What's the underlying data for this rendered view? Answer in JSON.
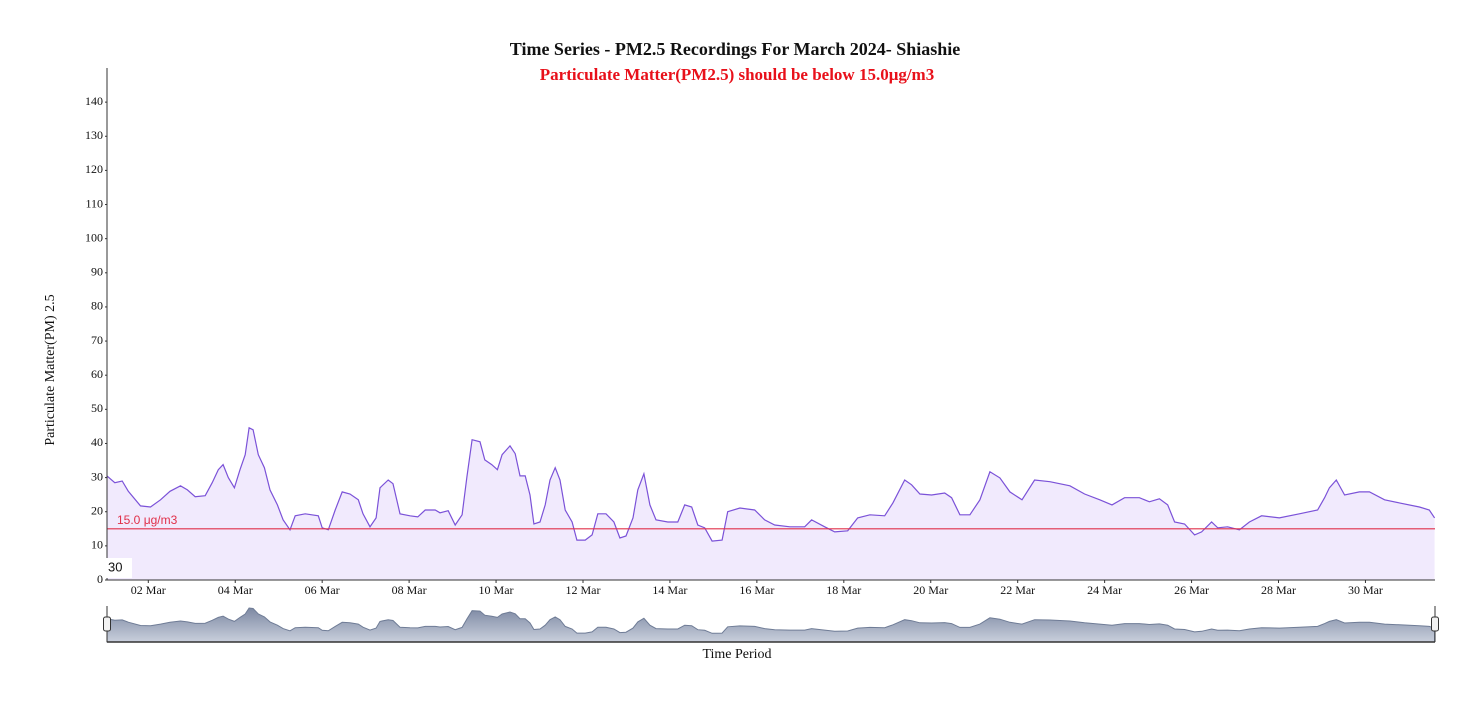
{
  "chart_data": {
    "type": "area",
    "title": "Time Series - PM2.5 Recordings For March 2024- Shiashie",
    "subtitle": "Particulate Matter(PM2.5) should be below 15.0μg/m3",
    "y_label": "Particulate Matter(PM) 2.5",
    "x_label": "Time Period",
    "annotation": "30",
    "threshold": {
      "value": 15,
      "label": "15.0 μg/m3"
    },
    "threshold_color": "#e0304a",
    "xlim": [
      1.05,
      31.6
    ],
    "ylim": [
      0,
      150
    ],
    "yticks": [
      0,
      10,
      20,
      30,
      40,
      50,
      60,
      70,
      80,
      90,
      100,
      110,
      120,
      130,
      140
    ],
    "xticks": [
      {
        "value": 2,
        "label": "02 Mar"
      },
      {
        "value": 4,
        "label": "04 Mar"
      },
      {
        "value": 6,
        "label": "06 Mar"
      },
      {
        "value": 8,
        "label": "08 Mar"
      },
      {
        "value": 10,
        "label": "10 Mar"
      },
      {
        "value": 12,
        "label": "12 Mar"
      },
      {
        "value": 14,
        "label": "14 Mar"
      },
      {
        "value": 16,
        "label": "16 Mar"
      },
      {
        "value": 18,
        "label": "18 Mar"
      },
      {
        "value": 20,
        "label": "20 Mar"
      },
      {
        "value": 22,
        "label": "22 Mar"
      },
      {
        "value": 24,
        "label": "24 Mar"
      },
      {
        "value": 26,
        "label": "26 Mar"
      },
      {
        "value": 28,
        "label": "28 Mar"
      },
      {
        "value": 30,
        "label": "30 Mar"
      }
    ],
    "navigator": true,
    "series": [
      {
        "color": "#7b52d8",
        "fill": "#f1eafd",
        "x": [
          1.05,
          1.23,
          1.4,
          1.54,
          1.82,
          2.05,
          2.28,
          2.5,
          2.74,
          2.9,
          3.08,
          3.31,
          3.47,
          3.61,
          3.72,
          3.84,
          3.98,
          4.11,
          4.23,
          4.32,
          4.41,
          4.53,
          4.67,
          4.8,
          4.97,
          5.1,
          5.26,
          5.38,
          5.61,
          5.91,
          6.0,
          6.14,
          6.3,
          6.46,
          6.64,
          6.83,
          6.94,
          7.1,
          7.24,
          7.33,
          7.52,
          7.63,
          7.79,
          8.02,
          8.2,
          8.37,
          8.6,
          8.71,
          8.9,
          9.06,
          9.22,
          9.33,
          9.45,
          9.63,
          9.74,
          9.9,
          10.03,
          10.14,
          10.32,
          10.44,
          10.55,
          10.67,
          10.78,
          10.87,
          11.01,
          11.13,
          11.24,
          11.36,
          11.47,
          11.59,
          11.75,
          11.86,
          12.05,
          12.21,
          12.34,
          12.53,
          12.71,
          12.85,
          12.99,
          13.15,
          13.26,
          13.4,
          13.54,
          13.68,
          13.95,
          14.18,
          14.34,
          14.5,
          14.64,
          14.8,
          14.97,
          15.2,
          15.33,
          15.61,
          15.95,
          16.18,
          16.41,
          16.76,
          17.1,
          17.26,
          17.56,
          17.79,
          18.09,
          18.32,
          18.6,
          18.94,
          19.13,
          19.4,
          19.56,
          19.75,
          20.02,
          20.32,
          20.48,
          20.67,
          20.9,
          21.13,
          21.36,
          21.59,
          21.82,
          22.1,
          22.39,
          22.74,
          23.2,
          23.54,
          23.89,
          24.17,
          24.46,
          24.8,
          25.03,
          25.26,
          25.45,
          25.61,
          25.84,
          26.07,
          26.23,
          26.46,
          26.6,
          26.83,
          27.1,
          27.33,
          27.61,
          28.02,
          28.48,
          28.9,
          29.06,
          29.17,
          29.33,
          29.52,
          29.86,
          30.09,
          30.44,
          30.78,
          31.24,
          31.47,
          31.59
        ],
        "values": [
          30.5,
          28.5,
          29,
          26,
          21.7,
          21.4,
          23.5,
          26,
          27.6,
          26.4,
          24.4,
          24.7,
          28.5,
          32.3,
          33.8,
          30,
          27,
          32.3,
          36.7,
          44.6,
          44,
          36.7,
          32.9,
          26.4,
          22,
          17.6,
          14.7,
          18.8,
          19.4,
          18.8,
          15.3,
          14.7,
          20.5,
          25.8,
          25.2,
          23.5,
          19.4,
          15.6,
          18.2,
          27,
          29.3,
          28.2,
          19.4,
          18.8,
          18.5,
          20.5,
          20.5,
          19.7,
          20.3,
          16.1,
          19.1,
          30.2,
          41.1,
          40.5,
          35.2,
          33.8,
          32.3,
          36.7,
          39.3,
          37,
          30.5,
          30.5,
          24.9,
          16.4,
          17,
          22,
          29.3,
          32.9,
          29.3,
          20.5,
          17,
          11.7,
          11.7,
          13.2,
          19.4,
          19.4,
          17,
          12.3,
          12.9,
          18.2,
          26.4,
          31.1,
          22,
          17.6,
          17,
          17,
          22,
          21.4,
          16.1,
          15.3,
          11.4,
          11.7,
          20,
          21.1,
          20.5,
          17.6,
          16.1,
          15.6,
          15.6,
          17.6,
          15.6,
          14.1,
          14.4,
          18.2,
          19.1,
          18.8,
          22.6,
          29.3,
          27.9,
          25.2,
          24.9,
          25.5,
          24.1,
          19.1,
          19.1,
          23.5,
          31.7,
          29.9,
          25.8,
          23.5,
          29.3,
          28.8,
          27.6,
          25.2,
          23.5,
          22,
          24.1,
          24.1,
          22.9,
          23.8,
          22,
          17,
          16.4,
          13.2,
          14.1,
          17,
          15.3,
          15.6,
          14.7,
          17,
          18.8,
          18.2,
          19.4,
          20.5,
          24.1,
          27,
          29.3,
          24.9,
          25.8,
          25.8,
          23.5,
          22.6,
          21.4,
          20.5,
          18.2
        ]
      }
    ]
  }
}
